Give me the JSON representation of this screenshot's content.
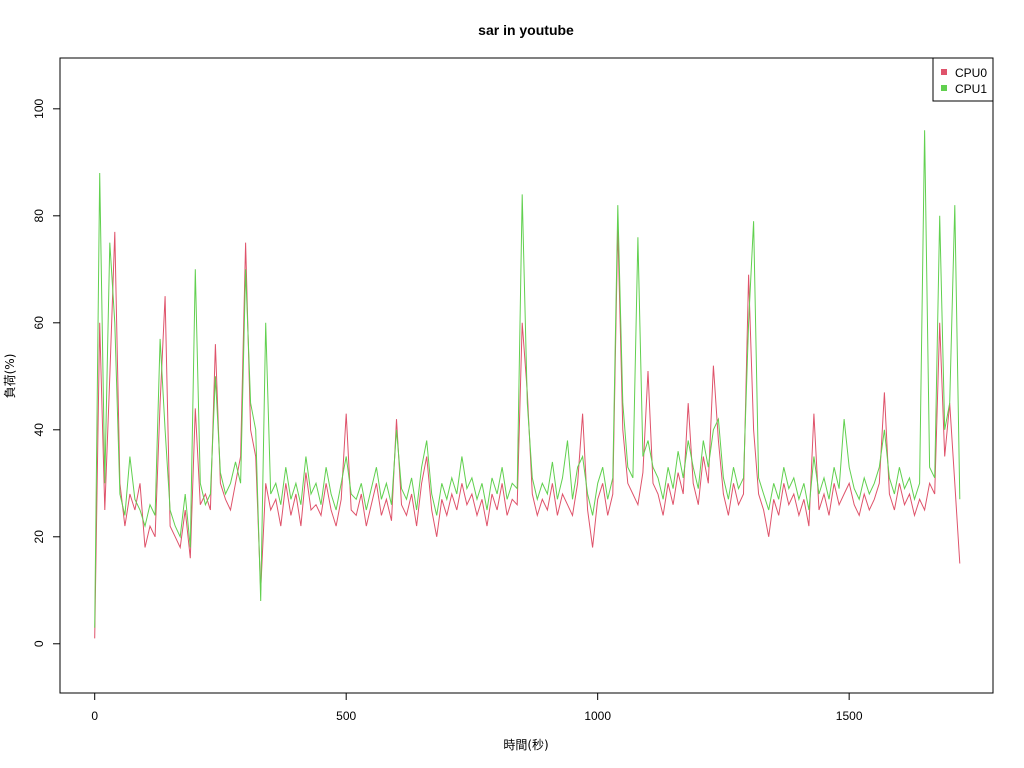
{
  "chart_data": {
    "type": "line",
    "title": "sar in youtube",
    "xlabel": "時間(秒)",
    "ylabel": "負荷(%)",
    "xlim": [
      -69,
      1786
    ],
    "ylim": [
      -9.2,
      109.5
    ],
    "xticks": [
      0,
      500,
      1000,
      1500
    ],
    "yticks": [
      0,
      20,
      40,
      60,
      80,
      100
    ],
    "grid": false,
    "legend_position": "top-right",
    "x": [
      0,
      10,
      20,
      30,
      40,
      50,
      60,
      70,
      80,
      90,
      100,
      110,
      120,
      130,
      140,
      150,
      160,
      170,
      180,
      190,
      200,
      210,
      220,
      230,
      240,
      250,
      260,
      270,
      280,
      290,
      300,
      310,
      320,
      330,
      340,
      350,
      360,
      370,
      380,
      390,
      400,
      410,
      420,
      430,
      440,
      450,
      460,
      470,
      480,
      490,
      500,
      510,
      520,
      530,
      540,
      550,
      560,
      570,
      580,
      590,
      600,
      610,
      620,
      630,
      640,
      650,
      660,
      670,
      680,
      690,
      700,
      710,
      720,
      730,
      740,
      750,
      760,
      770,
      780,
      790,
      800,
      810,
      820,
      830,
      840,
      850,
      860,
      870,
      880,
      890,
      900,
      910,
      920,
      930,
      940,
      950,
      960,
      970,
      980,
      990,
      1000,
      1010,
      1020,
      1030,
      1040,
      1050,
      1060,
      1070,
      1080,
      1090,
      1100,
      1110,
      1120,
      1130,
      1140,
      1150,
      1160,
      1170,
      1180,
      1190,
      1200,
      1210,
      1220,
      1230,
      1240,
      1250,
      1260,
      1270,
      1280,
      1290,
      1300,
      1310,
      1320,
      1330,
      1340,
      1350,
      1360,
      1370,
      1380,
      1390,
      1400,
      1410,
      1420,
      1430,
      1440,
      1450,
      1460,
      1470,
      1480,
      1490,
      1500,
      1510,
      1520,
      1530,
      1540,
      1550,
      1560,
      1570,
      1580,
      1590,
      1600,
      1610,
      1620,
      1630,
      1640,
      1650,
      1660,
      1670,
      1680,
      1690,
      1700,
      1710,
      1720
    ],
    "series": [
      {
        "name": "CPU0",
        "color": "#DF536B",
        "values": [
          1,
          60,
          25,
          50,
          77,
          30,
          22,
          28,
          25,
          30,
          18,
          22,
          20,
          45,
          65,
          22,
          20,
          18,
          25,
          16,
          44,
          26,
          28,
          25,
          56,
          30,
          27,
          25,
          30,
          35,
          75,
          40,
          35,
          10,
          30,
          25,
          27,
          22,
          30,
          24,
          28,
          22,
          32,
          25,
          26,
          24,
          30,
          25,
          22,
          27,
          43,
          25,
          24,
          28,
          22,
          26,
          30,
          24,
          27,
          23,
          42,
          26,
          24,
          28,
          22,
          30,
          35,
          25,
          20,
          27,
          24,
          28,
          25,
          30,
          26,
          28,
          24,
          27,
          22,
          28,
          25,
          30,
          24,
          27,
          26,
          60,
          47,
          28,
          24,
          27,
          25,
          30,
          24,
          28,
          26,
          24,
          30,
          43,
          25,
          18,
          27,
          30,
          24,
          28,
          78,
          40,
          30,
          28,
          26,
          32,
          51,
          30,
          28,
          24,
          30,
          26,
          32,
          28,
          45,
          30,
          26,
          35,
          30,
          52,
          38,
          28,
          24,
          30,
          26,
          28,
          69,
          40,
          28,
          25,
          20,
          27,
          24,
          30,
          26,
          28,
          24,
          27,
          22,
          43,
          25,
          28,
          24,
          30,
          26,
          28,
          30,
          26,
          24,
          28,
          25,
          27,
          30,
          47,
          28,
          25,
          30,
          26,
          28,
          24,
          27,
          25,
          30,
          28,
          60,
          35,
          45,
          30,
          15
        ]
      },
      {
        "name": "CPU1",
        "color": "#61D04F",
        "values": [
          3,
          88,
          30,
          75,
          60,
          28,
          24,
          35,
          27,
          25,
          22,
          26,
          24,
          57,
          40,
          25,
          22,
          20,
          28,
          18,
          70,
          30,
          26,
          28,
          50,
          32,
          28,
          30,
          34,
          30,
          70,
          45,
          40,
          8,
          60,
          28,
          30,
          26,
          33,
          27,
          30,
          26,
          35,
          28,
          30,
          26,
          33,
          28,
          25,
          30,
          35,
          28,
          27,
          30,
          25,
          29,
          33,
          27,
          30,
          26,
          40,
          29,
          27,
          31,
          25,
          33,
          38,
          28,
          24,
          30,
          27,
          31,
          28,
          35,
          29,
          31,
          27,
          30,
          25,
          31,
          28,
          33,
          27,
          30,
          29,
          84,
          45,
          31,
          27,
          30,
          28,
          34,
          27,
          31,
          38,
          27,
          33,
          35,
          28,
          24,
          30,
          33,
          27,
          31,
          82,
          45,
          33,
          31,
          76,
          35,
          38,
          33,
          31,
          27,
          33,
          29,
          36,
          31,
          38,
          33,
          29,
          38,
          33,
          40,
          42,
          31,
          27,
          33,
          29,
          31,
          60,
          79,
          31,
          28,
          25,
          30,
          27,
          33,
          29,
          31,
          27,
          30,
          25,
          35,
          28,
          31,
          27,
          33,
          29,
          42,
          33,
          29,
          27,
          31,
          28,
          30,
          33,
          40,
          31,
          28,
          33,
          29,
          31,
          27,
          30,
          96,
          33,
          31,
          80,
          40,
          45,
          82,
          27
        ]
      }
    ]
  }
}
